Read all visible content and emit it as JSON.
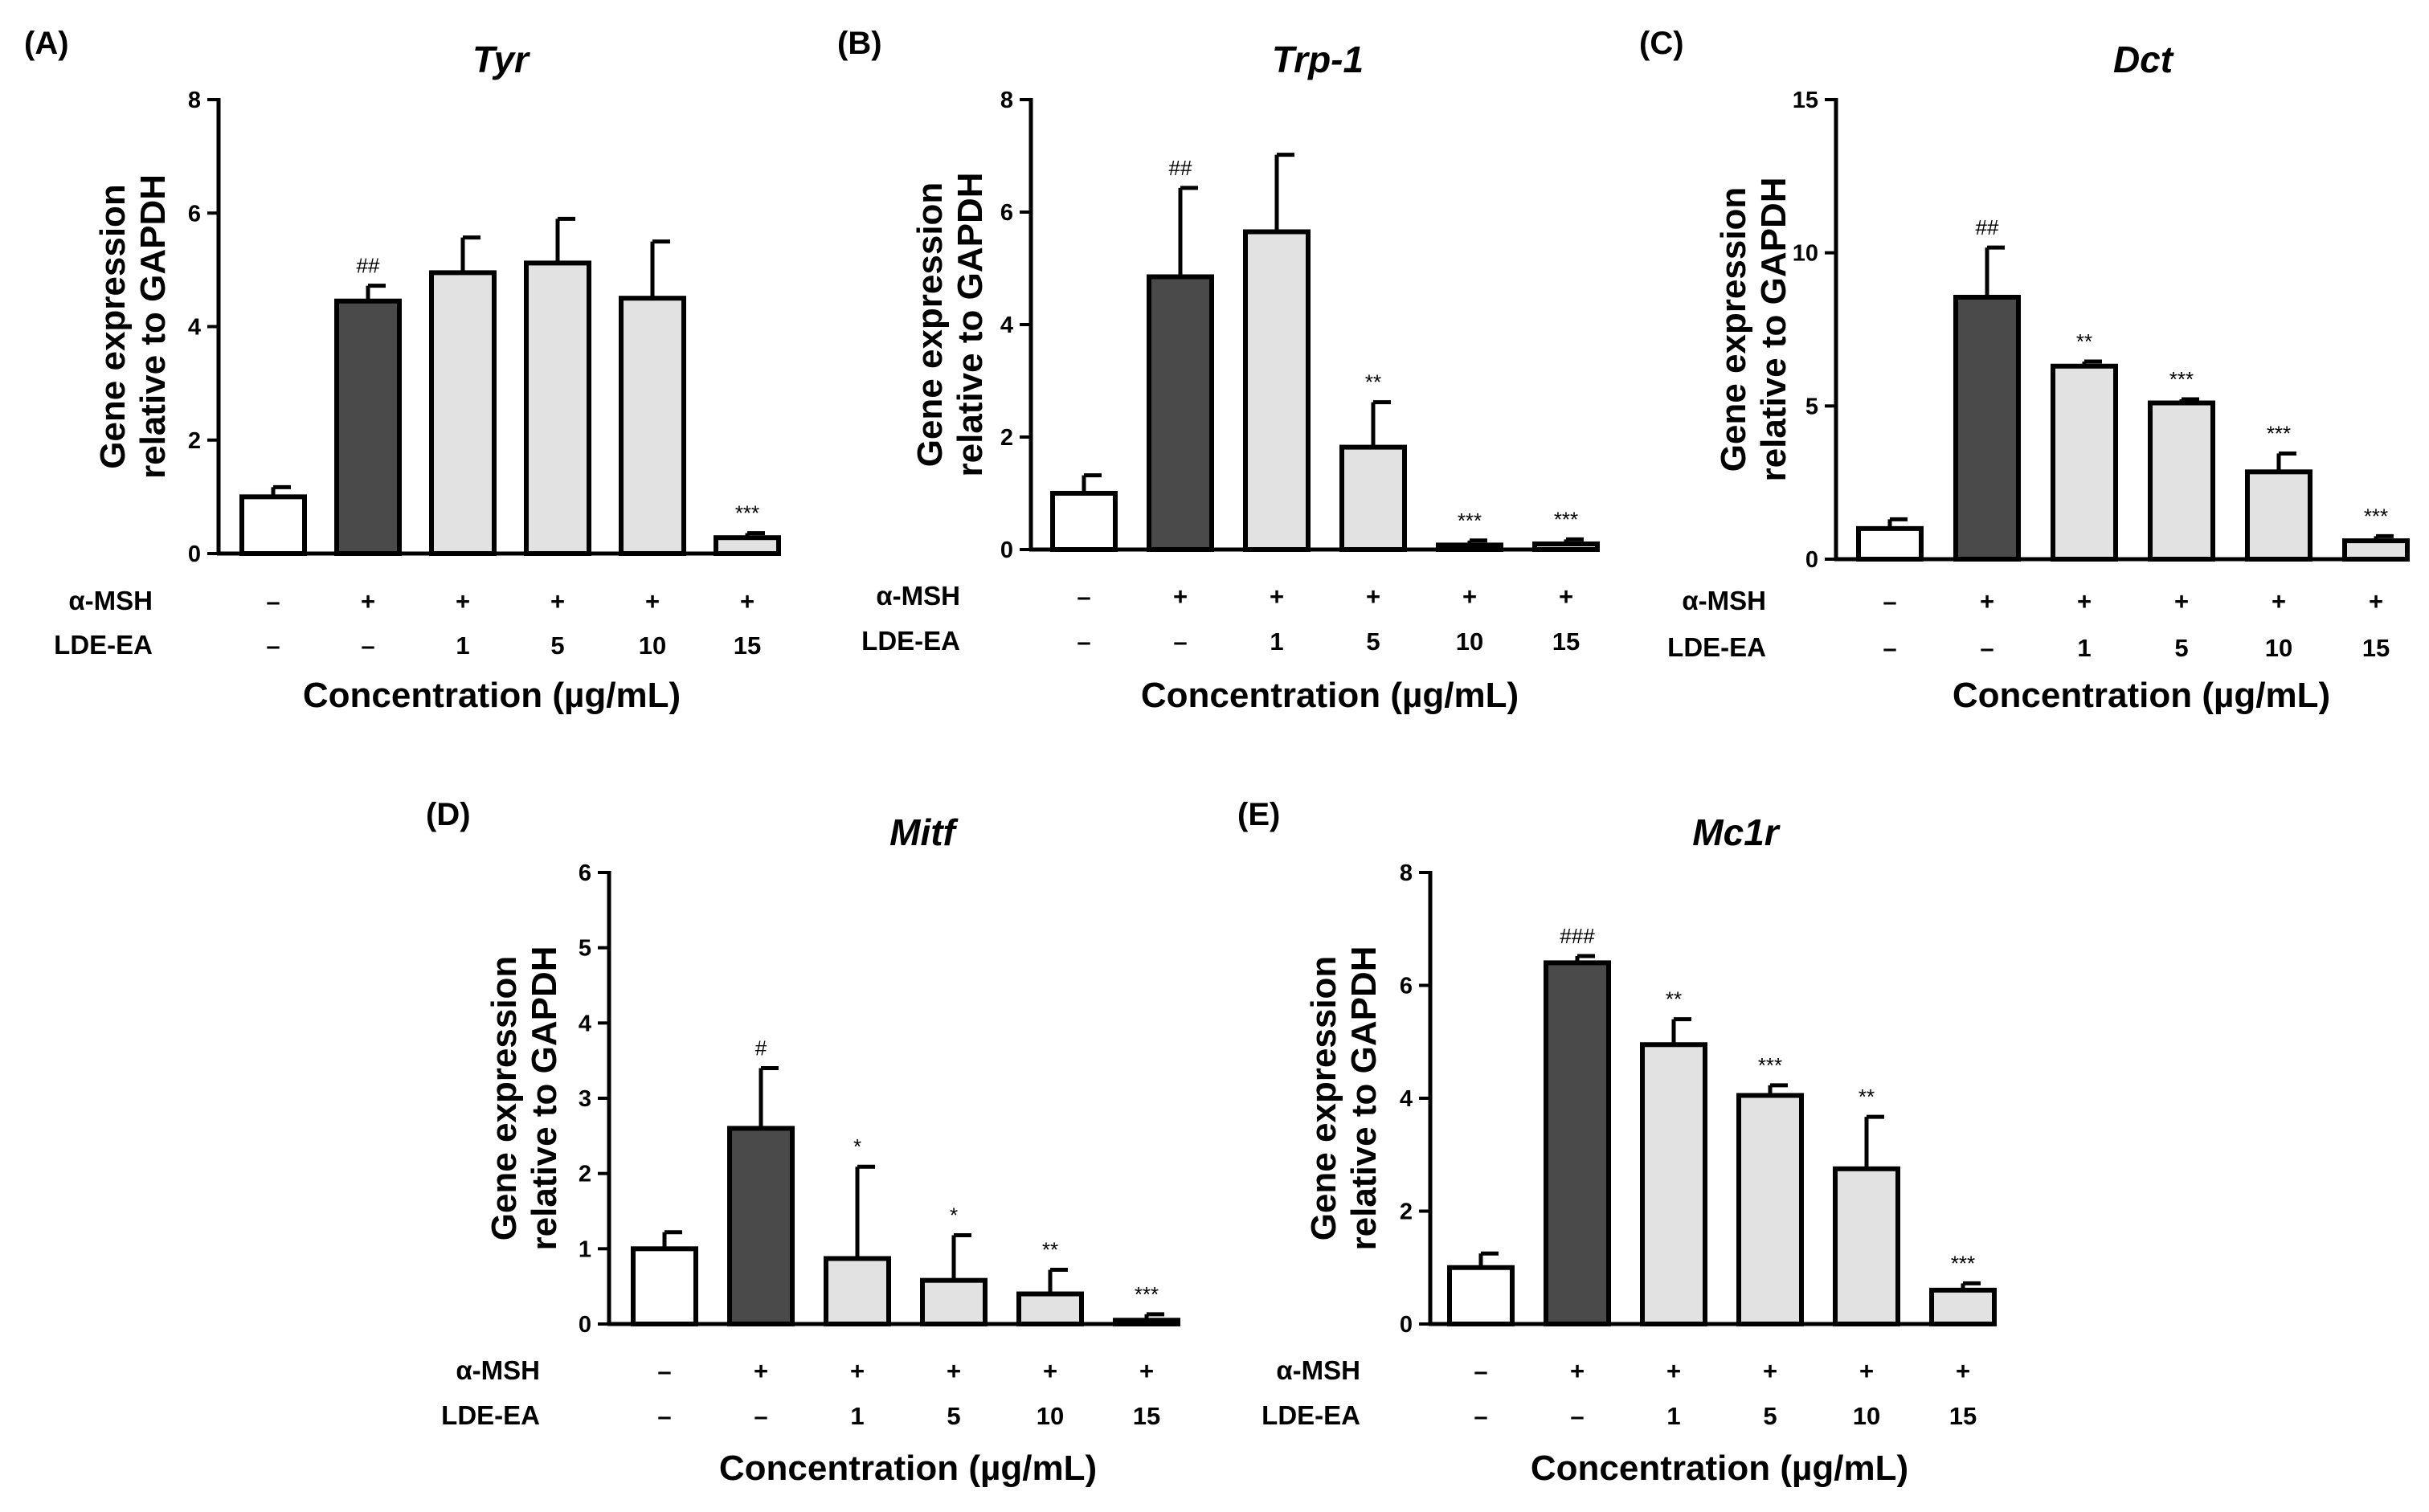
{
  "figure": {
    "bar_colors": {
      "control": "#ffffff",
      "msh": "#4a4a4a",
      "treated": "#e2e2e2"
    },
    "row_labels": {
      "msh": "α-MSH",
      "lde": "LDE-EA"
    },
    "msh_values": [
      "–",
      "+",
      "+",
      "+",
      "+",
      "+"
    ],
    "lde_values": [
      "–",
      "–",
      "1",
      "5",
      "10",
      "15"
    ]
  },
  "chart_data": [
    {
      "type": "bar",
      "panel": "(A)",
      "title": "Tyr",
      "ylabel": [
        "Gene expression",
        "relative to GAPDH"
      ],
      "xlabel": "Concentration (µg/mL)",
      "ylim": [
        0,
        8
      ],
      "yticks": [
        0,
        2,
        4,
        6,
        8
      ],
      "categories": [
        "control",
        "α-MSH",
        "LDE-EA 1",
        "LDE-EA 5",
        "LDE-EA 10",
        "LDE-EA 15"
      ],
      "values": [
        1.0,
        4.45,
        4.95,
        5.12,
        4.5,
        0.28
      ],
      "errors": [
        0.17,
        0.27,
        0.62,
        0.78,
        1.0,
        0.08
      ],
      "significance": [
        "",
        "##",
        "",
        "",
        "",
        "***"
      ]
    },
    {
      "type": "bar",
      "panel": "(B)",
      "title": "Trp-1",
      "ylabel": [
        "Gene expression",
        "relative to GAPDH"
      ],
      "xlabel": "Concentration (µg/mL)",
      "ylim": [
        0,
        8
      ],
      "yticks": [
        0,
        2,
        4,
        6,
        8
      ],
      "categories": [
        "control",
        "α-MSH",
        "LDE-EA 1",
        "LDE-EA 5",
        "LDE-EA 10",
        "LDE-EA 15"
      ],
      "values": [
        1.0,
        4.85,
        5.65,
        1.82,
        0.08,
        0.1
      ],
      "errors": [
        0.32,
        1.58,
        1.37,
        0.8,
        0.08,
        0.08
      ],
      "significance": [
        "",
        "##",
        "",
        "**",
        "***",
        "***"
      ]
    },
    {
      "type": "bar",
      "panel": "(C)",
      "title": "Dct",
      "ylabel": [
        "Gene expression",
        "relative to GAPDH"
      ],
      "xlabel": "Concentration (µg/mL)",
      "ylim": [
        0,
        15
      ],
      "yticks": [
        0,
        5,
        10,
        15
      ],
      "categories": [
        "control",
        "α-MSH",
        "LDE-EA 1",
        "LDE-EA 5",
        "LDE-EA 10",
        "LDE-EA 15"
      ],
      "values": [
        1.0,
        8.55,
        6.3,
        5.1,
        2.85,
        0.6
      ],
      "errors": [
        0.3,
        1.62,
        0.15,
        0.12,
        0.6,
        0.15
      ],
      "significance": [
        "",
        "##",
        "**",
        "***",
        "***",
        "***"
      ]
    },
    {
      "type": "bar",
      "panel": "(D)",
      "title": "Mitf",
      "ylabel": [
        "Gene expression",
        "relative to GAPDH"
      ],
      "xlabel": "Concentration (µg/mL)",
      "ylim": [
        0,
        6
      ],
      "yticks": [
        0,
        1,
        2,
        3,
        4,
        5,
        6
      ],
      "categories": [
        "control",
        "α-MSH",
        "LDE-EA 1",
        "LDE-EA 5",
        "LDE-EA 10",
        "LDE-EA 15"
      ],
      "values": [
        1.0,
        2.6,
        0.87,
        0.58,
        0.4,
        0.05
      ],
      "errors": [
        0.22,
        0.8,
        1.22,
        0.6,
        0.32,
        0.08
      ],
      "significance": [
        "",
        "#",
        "*",
        "*",
        "**",
        "***"
      ]
    },
    {
      "type": "bar",
      "panel": "(E)",
      "title": "Mc1r",
      "ylabel": [
        "Gene expression",
        "relative to GAPDH"
      ],
      "xlabel": "Concentration (µg/mL)",
      "ylim": [
        0,
        8
      ],
      "yticks": [
        0,
        2,
        4,
        6,
        8
      ],
      "categories": [
        "control",
        "α-MSH",
        "LDE-EA 1",
        "LDE-EA 5",
        "LDE-EA 10",
        "LDE-EA 15"
      ],
      "values": [
        1.0,
        6.4,
        4.95,
        4.05,
        2.75,
        0.6
      ],
      "errors": [
        0.25,
        0.12,
        0.45,
        0.18,
        0.92,
        0.12
      ],
      "significance": [
        "",
        "###",
        "**",
        "***",
        "**",
        "***"
      ]
    }
  ]
}
